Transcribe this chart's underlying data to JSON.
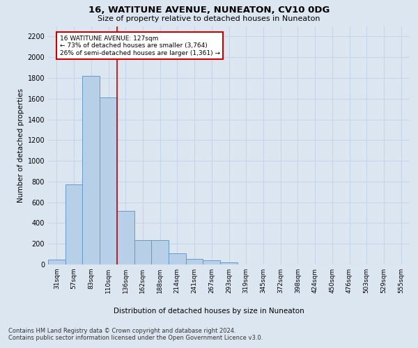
{
  "title": "16, WATITUNE AVENUE, NUNEATON, CV10 0DG",
  "subtitle": "Size of property relative to detached houses in Nuneaton",
  "xlabel": "Distribution of detached houses by size in Nuneaton",
  "ylabel": "Number of detached properties",
  "bar_labels": [
    "31sqm",
    "57sqm",
    "83sqm",
    "110sqm",
    "136sqm",
    "162sqm",
    "188sqm",
    "214sqm",
    "241sqm",
    "267sqm",
    "293sqm",
    "319sqm",
    "345sqm",
    "372sqm",
    "398sqm",
    "424sqm",
    "450sqm",
    "476sqm",
    "503sqm",
    "529sqm",
    "555sqm"
  ],
  "bar_values": [
    50,
    775,
    1820,
    1610,
    520,
    235,
    235,
    105,
    55,
    40,
    18,
    0,
    0,
    0,
    0,
    0,
    0,
    0,
    0,
    0,
    0
  ],
  "bar_color": "#b8cfe8",
  "bar_edge_color": "#6699cc",
  "grid_color": "#c8d4e8",
  "background_color": "#dce6f0",
  "annotation_text": "16 WATITUNE AVENUE: 127sqm\n← 73% of detached houses are smaller (3,764)\n26% of semi-detached houses are larger (1,361) →",
  "vline_x_index": 3.5,
  "annotation_box_color": "#ffffff",
  "annotation_border_color": "#cc0000",
  "ylim": [
    0,
    2300
  ],
  "yticks": [
    0,
    200,
    400,
    600,
    800,
    1000,
    1200,
    1400,
    1600,
    1800,
    2000,
    2200
  ],
  "footer_line1": "Contains HM Land Registry data © Crown copyright and database right 2024.",
  "footer_line2": "Contains public sector information licensed under the Open Government Licence v3.0."
}
